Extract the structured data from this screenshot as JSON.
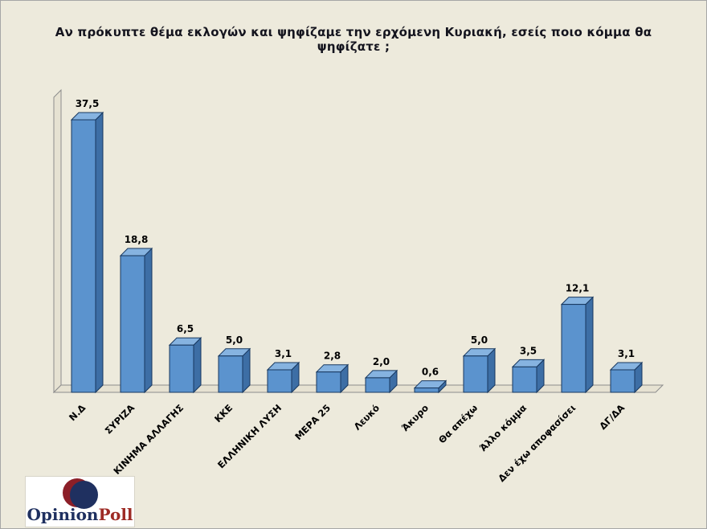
{
  "title": "Αν πρόκυπτε θέμα εκλογών και ψηφίζαμε την ερχόμενη Κυριακή, εσείς ποιο κόμμα θα ψηφίζατε ;",
  "chart_data": {
    "type": "bar",
    "style": "3d-column",
    "title": "Αν πρόκυπτε θέμα εκλογών και ψηφίζαμε την ερχόμενη Κυριακή, εσείς ποιο κόμμα θα ψηφίζατε ;",
    "categories": [
      "Ν.Δ",
      "ΣΥΡΙΖΑ",
      "ΚΙΝΗΜΑ ΑΛΛΑΓΗΣ",
      "ΚΚΕ",
      "ΕΛΛΗΝΙΚΗ ΛΥΣΗ",
      "ΜΕΡΑ 25",
      "Λευκό",
      "Άκυρο",
      "Θα απέχω",
      "Άλλο κόμμα",
      "Δεν έχω αποφασίσει",
      "ΔΓ/ΔΑ"
    ],
    "values": [
      37.5,
      18.8,
      6.5,
      5.0,
      3.1,
      2.8,
      2.0,
      0.6,
      5.0,
      3.5,
      12.1,
      3.1
    ],
    "value_labels": [
      "37,5",
      "18,8",
      "6,5",
      "5,0",
      "3,1",
      "2,8",
      "2,0",
      "0,6",
      "5,0",
      "3,5",
      "12,1",
      "3,1"
    ],
    "xlabel": "",
    "ylabel": "",
    "ylim": [
      0,
      40
    ],
    "grid": false,
    "legend": false,
    "colors": {
      "bar_front": "#5B93CE",
      "bar_top": "#86B3E0",
      "bar_side": "#3D6EA5",
      "bar_outline": "#17375E",
      "wall_fill": "#E6E2D2",
      "wall_line": "#8C8C8C",
      "label_text": "#000000",
      "background": "#EDEADC"
    }
  },
  "logo": {
    "part1": "Opinion",
    "part2": "Poll"
  }
}
